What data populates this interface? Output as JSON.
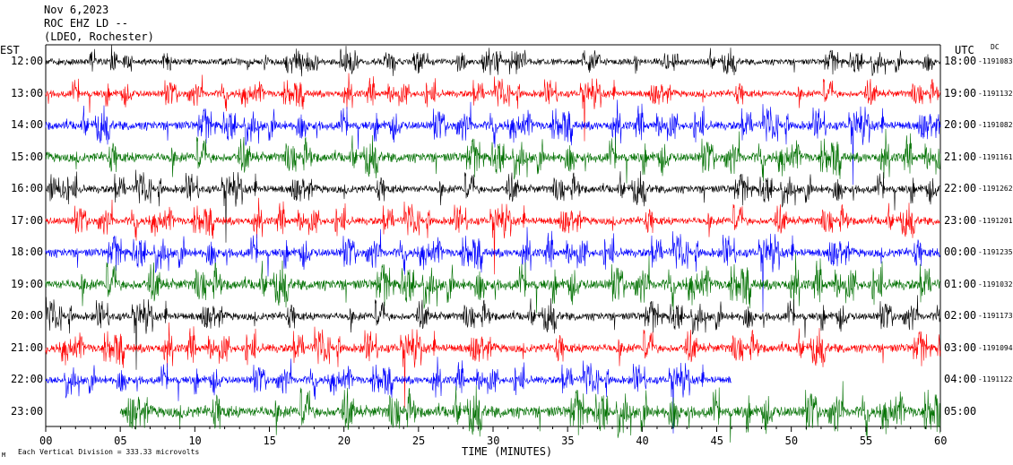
{
  "header": {
    "date": "Nov 6,2023",
    "station": "ROC EHZ LD --",
    "network": "(LDEO, Rochester)"
  },
  "left_tz": "EST",
  "right_tz": "UTC",
  "dc_label": "DC",
  "footer_note": "Each Vertical Division = 333.33 microvolts",
  "footer_mark": "M",
  "xlabel": "TIME (MINUTES)",
  "colors": {
    "black": "#000000",
    "red": "#ff0000",
    "blue": "#0000ff",
    "green": "#007000"
  },
  "chart_data": {
    "type": "line",
    "title": "ROC EHZ LD --",
    "xlabel": "TIME (MINUTES)",
    "xlim": [
      0,
      60
    ],
    "x_ticks": [
      "00",
      "05",
      "10",
      "15",
      "20",
      "25",
      "30",
      "35",
      "40",
      "45",
      "50",
      "55",
      "60"
    ],
    "rows": [
      {
        "est": "12:00",
        "utc": "18:00",
        "dc": "-1191083",
        "color": "black",
        "start": 0,
        "end": 60,
        "amp": 0.7
      },
      {
        "est": "13:00",
        "utc": "19:00",
        "dc": "-1191132",
        "color": "red",
        "start": 0,
        "end": 60,
        "amp": 0.8
      },
      {
        "est": "14:00",
        "utc": "20:00",
        "dc": "-1191082",
        "color": "blue",
        "start": 0,
        "end": 60,
        "amp": 1.0
      },
      {
        "est": "15:00",
        "utc": "21:00",
        "dc": "-1191161",
        "color": "green",
        "start": 0,
        "end": 60,
        "amp": 1.1
      },
      {
        "est": "16:00",
        "utc": "22:00",
        "dc": "-1191262",
        "color": "black",
        "start": 0,
        "end": 60,
        "amp": 0.9
      },
      {
        "est": "17:00",
        "utc": "23:00",
        "dc": "-1191201",
        "color": "red",
        "start": 0,
        "end": 60,
        "amp": 0.9
      },
      {
        "est": "18:00",
        "utc": "00:00",
        "dc": "-1191235",
        "color": "blue",
        "start": 0,
        "end": 60,
        "amp": 1.0
      },
      {
        "est": "19:00",
        "utc": "01:00",
        "dc": "-1191032",
        "color": "green",
        "start": 0,
        "end": 60,
        "amp": 1.2
      },
      {
        "est": "20:00",
        "utc": "02:00",
        "dc": "-1191173",
        "color": "black",
        "start": 0,
        "end": 60,
        "amp": 0.9
      },
      {
        "est": "21:00",
        "utc": "03:00",
        "dc": "-1191094",
        "color": "red",
        "start": 0,
        "end": 60,
        "amp": 1.0
      },
      {
        "est": "22:00",
        "utc": "04:00",
        "dc": "-1191122",
        "color": "blue",
        "start": 0,
        "end": 46,
        "amp": 0.9
      },
      {
        "est": "23:00",
        "utc": "05:00",
        "dc": "",
        "color": "green",
        "start": 5,
        "end": 60,
        "amp": 1.3
      }
    ]
  }
}
